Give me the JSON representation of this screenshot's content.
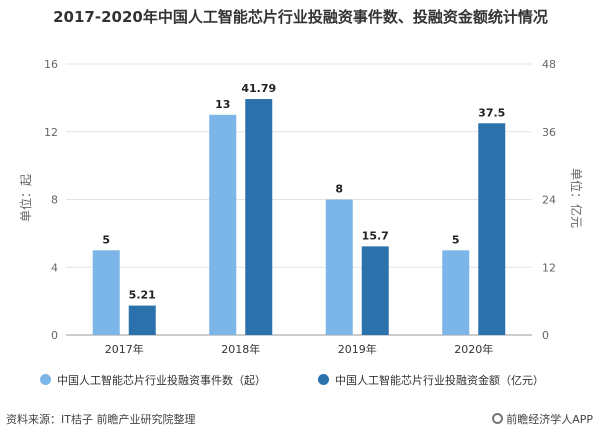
{
  "title": "2017-2020年中国人工智能芯片行业投融资事件数、投融资金额统计情况",
  "chart_data": {
    "type": "bar",
    "categories": [
      "2017年",
      "2018年",
      "2019年",
      "2020年"
    ],
    "series": [
      {
        "name": "中国人工智能芯片行业投融资事件数（起）",
        "values": [
          5,
          13,
          8,
          5
        ],
        "axis": "left",
        "color": "#7cb5e8"
      },
      {
        "name": "中国人工智能芯片行业投融资金额（亿元）",
        "values": [
          5.21,
          41.79,
          15.7,
          37.5
        ],
        "axis": "right",
        "color": "#2b72ad"
      }
    ],
    "ylabel_left": "单位：起",
    "ylabel_right": "单位：亿元",
    "ylim_left": [
      0,
      16
    ],
    "yticks_left": [
      0,
      4,
      8,
      12,
      16
    ],
    "ylim_right": [
      0,
      48
    ],
    "yticks_right": [
      0,
      12,
      24,
      36,
      48
    ],
    "grid": true,
    "legend_position": "bottom"
  },
  "footer": {
    "source": "资料来源：IT桔子 前瞻产业研究院整理",
    "brand": "前瞻经济学人APP"
  }
}
